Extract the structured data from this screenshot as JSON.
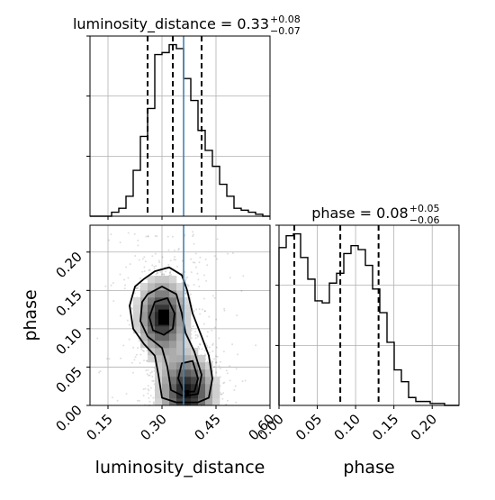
{
  "chart_data": {
    "type": "corner",
    "grid": true,
    "truth_color": "#4682b4",
    "line_color": "#000000",
    "panels": [
      {
        "id": "lumdist-hist",
        "type": "histogram-step",
        "title": {
          "text": "luminosity_distance = 0.33",
          "sup": "+0.08",
          "sub": "−0.07"
        },
        "xlim": [
          0.1,
          0.6
        ],
        "xticks": [
          0.15,
          0.3,
          0.45,
          0.6
        ],
        "bin_edges": [
          0.1,
          0.12,
          0.14,
          0.16,
          0.18,
          0.2,
          0.22,
          0.24,
          0.26,
          0.28,
          0.3,
          0.32,
          0.34,
          0.36,
          0.38,
          0.4,
          0.42,
          0.44,
          0.46,
          0.48,
          0.5,
          0.52,
          0.54,
          0.56,
          0.58,
          0.6
        ],
        "values": [
          0,
          0,
          0,
          2,
          4,
          10,
          23,
          40,
          54,
          81,
          82,
          86,
          84,
          69,
          58,
          43,
          33,
          25,
          16,
          10,
          4,
          3,
          2,
          1,
          0
        ],
        "quantiles": [
          0.26,
          0.33,
          0.41
        ],
        "truth": 0.36
      },
      {
        "id": "phase-hist",
        "type": "histogram-step",
        "title": {
          "text": "phase = 0.08",
          "sup": "+0.05",
          "sub": "−0.06"
        },
        "xlim": [
          0.0,
          0.235
        ],
        "xticks": [
          0.0,
          0.05,
          0.1,
          0.15,
          0.2
        ],
        "bin_edges": [
          0.0,
          0.0094,
          0.0188,
          0.0282,
          0.0376,
          0.047,
          0.0564,
          0.0658,
          0.0752,
          0.0846,
          0.094,
          0.1034,
          0.1128,
          0.1222,
          0.1316,
          0.141,
          0.1504,
          0.1598,
          0.1692,
          0.1786,
          0.188,
          0.1974,
          0.2068,
          0.2162,
          0.2256,
          0.235
        ],
        "values": [
          80,
          86,
          87,
          75,
          64,
          53,
          52,
          62,
          67,
          77,
          81,
          79,
          71,
          59,
          47,
          32,
          18,
          12,
          4,
          2,
          2,
          1,
          1,
          0,
          0
        ],
        "quantiles": [
          0.02,
          0.08,
          0.13
        ]
      },
      {
        "id": "joint-2d",
        "type": "2d-density",
        "xlim": [
          0.1,
          0.6
        ],
        "ylim": [
          0.0,
          0.235
        ],
        "xticks": [
          0.15,
          0.3,
          0.45,
          0.6
        ],
        "yticks": [
          0.0,
          0.05,
          0.1,
          0.15,
          0.2
        ],
        "xlabel": "luminosity_distance",
        "ylabel": "phase",
        "truth_x": 0.36,
        "modes": [
          {
            "x": 0.3,
            "y": 0.115
          },
          {
            "x": 0.37,
            "y": 0.018
          }
        ]
      }
    ],
    "axis_tick_labels": {
      "lumdist": [
        "0.15",
        "0.30",
        "0.45",
        "0.60"
      ],
      "phase": [
        "0.00",
        "0.05",
        "0.10",
        "0.15",
        "0.20"
      ]
    },
    "xlabels": [
      "luminosity_distance",
      "phase"
    ],
    "ylabels": [
      "phase"
    ]
  }
}
